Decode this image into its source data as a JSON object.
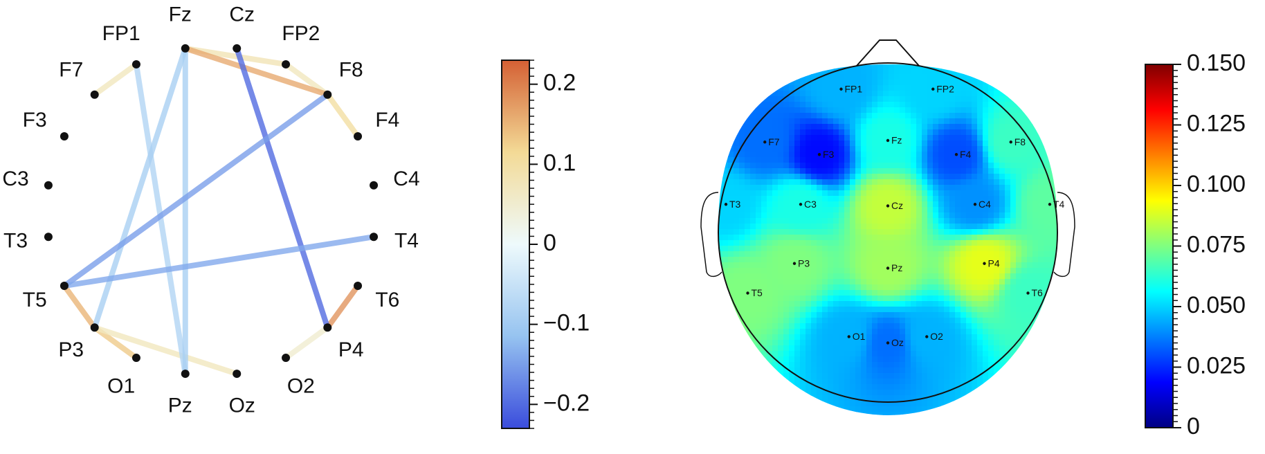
{
  "chart_data": [
    {
      "type": "connectivity-circle",
      "nodes": [
        "FP1",
        "Fz",
        "Cz",
        "FP2",
        "F8",
        "F4",
        "C4",
        "T4",
        "T6",
        "P4",
        "O2",
        "Oz",
        "Pz",
        "O1",
        "P3",
        "T5",
        "T3",
        "C3",
        "F3",
        "F7"
      ],
      "edges": [
        {
          "source": "F7",
          "target": "FP1",
          "value": 0.07
        },
        {
          "source": "Fz",
          "target": "FP2",
          "value": 0.08
        },
        {
          "source": "FP2",
          "target": "F8",
          "value": 0.07
        },
        {
          "source": "Fz",
          "target": "F8",
          "value": 0.16
        },
        {
          "source": "F8",
          "target": "F4",
          "value": 0.1
        },
        {
          "source": "T6",
          "target": "P4",
          "value": 0.18
        },
        {
          "source": "P4",
          "target": "O2",
          "value": 0.05
        },
        {
          "source": "T5",
          "target": "P3",
          "value": 0.15
        },
        {
          "source": "P3",
          "target": "O1",
          "value": 0.13
        },
        {
          "source": "P3",
          "target": "Oz",
          "value": 0.07
        },
        {
          "source": "FP1",
          "target": "Pz",
          "value": -0.08
        },
        {
          "source": "Fz",
          "target": "Pz",
          "value": -0.09
        },
        {
          "source": "Fz",
          "target": "P3",
          "value": -0.09
        },
        {
          "source": "Cz",
          "target": "P4",
          "value": -0.2
        },
        {
          "source": "T5",
          "target": "F8",
          "value": -0.15
        },
        {
          "source": "T5",
          "target": "T4",
          "value": -0.14
        }
      ],
      "colorbar": {
        "min": -0.23,
        "max": 0.23,
        "ticks": [
          0.2,
          0.1,
          0,
          -0.1,
          -0.2
        ],
        "tick_labels": [
          "0.2",
          "0.1",
          "0",
          "−0.1",
          "−0.2"
        ],
        "colormap": "coolwarm"
      }
    },
    {
      "type": "topomap",
      "electrodes": [
        {
          "name": "FP1",
          "value": 0.045
        },
        {
          "name": "FP2",
          "value": 0.05
        },
        {
          "name": "F7",
          "value": 0.035
        },
        {
          "name": "F3",
          "value": 0.02
        },
        {
          "name": "Fz",
          "value": 0.06
        },
        {
          "name": "F4",
          "value": 0.03
        },
        {
          "name": "F8",
          "value": 0.065
        },
        {
          "name": "T3",
          "value": 0.05
        },
        {
          "name": "C3",
          "value": 0.06
        },
        {
          "name": "Cz",
          "value": 0.085
        },
        {
          "name": "C4",
          "value": 0.04
        },
        {
          "name": "T4",
          "value": 0.07
        },
        {
          "name": "T5",
          "value": 0.075
        },
        {
          "name": "P3",
          "value": 0.075
        },
        {
          "name": "Pz",
          "value": 0.08
        },
        {
          "name": "P4",
          "value": 0.09
        },
        {
          "name": "T6",
          "value": 0.065
        },
        {
          "name": "O1",
          "value": 0.045
        },
        {
          "name": "Oz",
          "value": 0.035
        },
        {
          "name": "O2",
          "value": 0.045
        }
      ],
      "colorbar": {
        "min": 0,
        "max": 0.15,
        "ticks": [
          0.15,
          0.125,
          0.1,
          0.075,
          0.05,
          0.025,
          0
        ],
        "tick_labels": [
          "0.150",
          "0.125",
          "0.100",
          "0.075",
          "0.050",
          "0.025",
          "0"
        ],
        "colormap": "jet"
      }
    }
  ]
}
